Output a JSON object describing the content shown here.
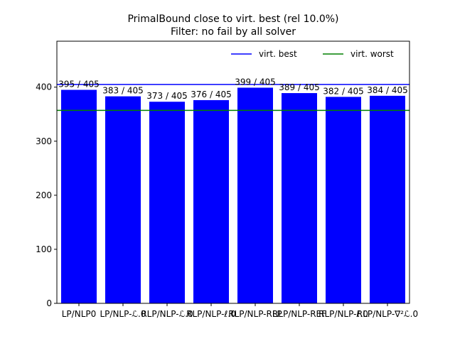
{
  "chart_data": {
    "type": "bar",
    "title": "PrimalBound close to virt. best (rel 10.0%)",
    "subtitle": "Filter: no fail by all solver",
    "categories": [
      "LP/NLP0",
      "LP/NLP-ℒ.0",
      "RLP/NLP-ℒ.0",
      "RLP/NLP-ℓ.0",
      "RLP/NLP-RLP",
      "RLP/NLP-REF",
      "RLP/NLP-ℓ.0",
      "RLP/NLP-∇²ℒ.0"
    ],
    "values": [
      395,
      383,
      373,
      376,
      399,
      389,
      382,
      384
    ],
    "data_labels": [
      "395 / 405",
      "383 / 405",
      "373 / 405",
      "376 / 405",
      "399 / 405",
      "389 / 405",
      "382 / 405",
      "384 / 405"
    ],
    "bar_color": "#0000ff",
    "ylim": [
      0,
      485
    ],
    "yticks": [
      0,
      100,
      200,
      300,
      400
    ],
    "reference_lines": [
      {
        "name": "virt. best",
        "value": 405,
        "color": "#0000ff"
      },
      {
        "name": "virt. worst",
        "value": 357,
        "color": "#008000"
      }
    ],
    "legend_position": "upper right",
    "grid": false
  }
}
